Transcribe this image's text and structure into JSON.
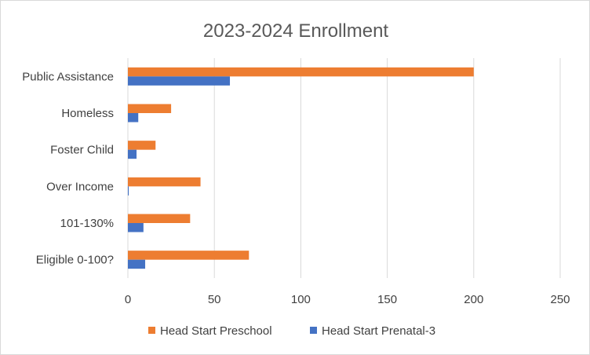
{
  "chart_data": {
    "type": "bar",
    "orientation": "horizontal",
    "title": "2023-2024 Enrollment",
    "categories": [
      "Public Assistance",
      "Homeless",
      "Foster Child",
      "Over Income",
      "101-130%",
      "Eligible 0-100?"
    ],
    "series": [
      {
        "name": "Head Start Preschool",
        "color": "#ed7d31",
        "values": [
          200,
          25,
          16,
          42,
          36,
          70
        ]
      },
      {
        "name": "Head Start Prenatal-3",
        "color": "#4472c4",
        "values": [
          59,
          6,
          5,
          0.5,
          9,
          10
        ]
      }
    ],
    "xlim": [
      0,
      250
    ],
    "xticks": [
      "0",
      "50",
      "100",
      "150",
      "200",
      "250"
    ],
    "xlabel": "",
    "ylabel": "",
    "grid": "vertical",
    "legend": "bottom"
  }
}
